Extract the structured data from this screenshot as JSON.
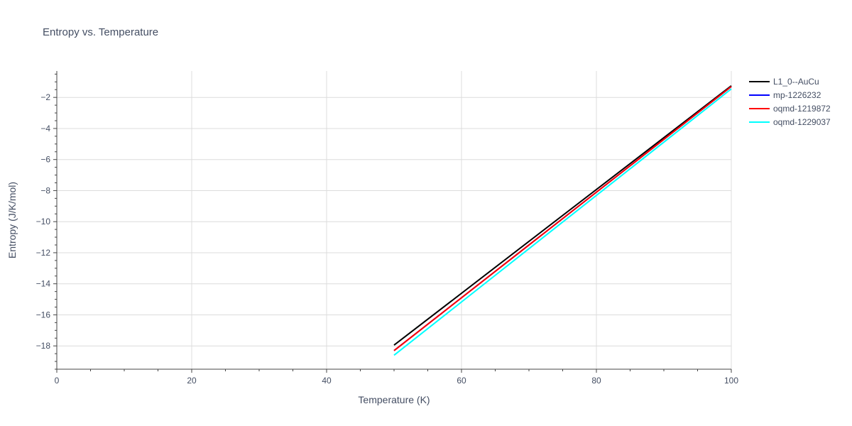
{
  "chart_data": {
    "type": "line",
    "title": "Entropy vs. Temperature",
    "xlabel": "Temperature (K)",
    "ylabel": "Entropy (J/K/mol)",
    "xlim": [
      0,
      100
    ],
    "ylim": [
      -19.5,
      -0.3
    ],
    "x_ticks": [
      0,
      20,
      40,
      60,
      80,
      100
    ],
    "x_tick_labels": [
      "0",
      "20",
      "40",
      "60",
      "80",
      "100"
    ],
    "y_ticks": [
      -18,
      -16,
      -14,
      -12,
      -10,
      -8,
      -6,
      -4,
      -2
    ],
    "y_tick_labels": [
      "−18",
      "−16",
      "−14",
      "−12",
      "−10",
      "−8",
      "−6",
      "−4",
      "−2"
    ],
    "x_minor_step": 5,
    "y_minor_step": 0.5,
    "grid": true,
    "legend_position": "top-right",
    "series": [
      {
        "name": "L1_0--AuCu",
        "color": "#000000",
        "x": [
          50,
          100
        ],
        "y": [
          -17.95,
          -1.25
        ]
      },
      {
        "name": "mp-1226232",
        "color": "#0000ff",
        "x": [
          50,
          100
        ],
        "y": [
          -18.3,
          -1.3
        ]
      },
      {
        "name": "oqmd-1219872",
        "color": "#ff0000",
        "x": [
          50,
          100
        ],
        "y": [
          -18.3,
          -1.3
        ]
      },
      {
        "name": "oqmd-1229037",
        "color": "#00ffff",
        "x": [
          50,
          100
        ],
        "y": [
          -18.6,
          -1.45
        ]
      }
    ]
  }
}
